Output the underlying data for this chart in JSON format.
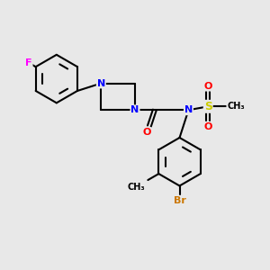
{
  "bg_color": "#e8e8e8",
  "bond_color": "#000000",
  "atom_colors": {
    "F": "#ff00ff",
    "N": "#0000ff",
    "O": "#ff0000",
    "S": "#cccc00",
    "Br": "#cc7700",
    "C": "#000000"
  },
  "figsize": [
    3.0,
    3.0
  ],
  "dpi": 100
}
